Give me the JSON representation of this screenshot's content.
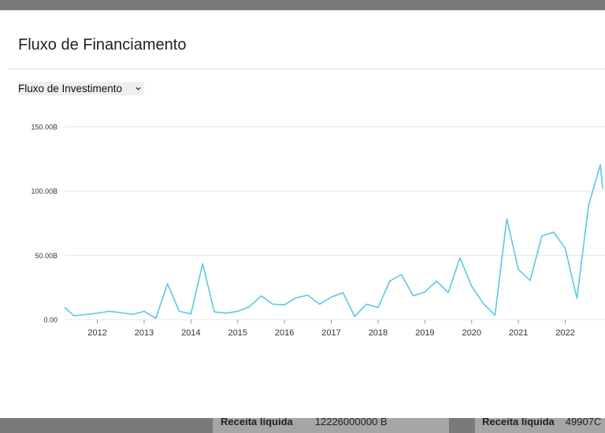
{
  "modal": {
    "title": "Fluxo de Financiamento",
    "select_value": "Fluxo de Investimento"
  },
  "colors": {
    "line": "#5bc8e6",
    "grid": "#e6e6e6",
    "overlay": "#7a7a7a"
  },
  "icons": {
    "select": "chevron-down-icon"
  },
  "chart_data": {
    "type": "line",
    "title": "",
    "xlabel": "",
    "ylabel": "",
    "x_ticks": [
      "2012",
      "2013",
      "2014",
      "2015",
      "2016",
      "2017",
      "2018",
      "2019",
      "2020",
      "2021",
      "2022"
    ],
    "y_ticks": [
      "0.00",
      "50.00B",
      "100.00B",
      "150.00B"
    ],
    "ylim": [
      0,
      150
    ],
    "unit": "B",
    "grid": "horizontal",
    "series": [
      {
        "name": "",
        "x": [
          2011.3,
          2011.5,
          2011.75,
          2012.0,
          2012.25,
          2012.5,
          2012.75,
          2013.0,
          2013.25,
          2013.5,
          2013.75,
          2014.0,
          2014.25,
          2014.5,
          2014.75,
          2015.0,
          2015.25,
          2015.5,
          2015.75,
          2016.0,
          2016.25,
          2016.5,
          2016.75,
          2017.0,
          2017.25,
          2017.5,
          2017.75,
          2018.0,
          2018.25,
          2018.5,
          2018.75,
          2019.0,
          2019.25,
          2019.5,
          2019.75,
          2020.0,
          2020.25,
          2020.5,
          2020.75,
          2021.0,
          2021.25,
          2021.5,
          2021.75,
          2022.0,
          2022.25,
          2022.5,
          2022.75,
          2022.8
        ],
        "values": [
          9.5,
          3,
          4,
          5,
          6.5,
          5.5,
          4,
          6.5,
          1,
          28,
          6.5,
          4.5,
          43.5,
          6,
          5,
          6.5,
          10,
          18.5,
          12,
          11.5,
          17,
          19,
          12,
          17.5,
          21,
          2.5,
          12,
          9.5,
          30,
          35,
          18.5,
          21.5,
          30,
          21,
          48,
          26,
          12.5,
          3.5,
          78.5,
          39,
          30.5,
          65,
          68,
          55.5,
          16.5,
          89,
          120.5,
          102
        ]
      }
    ]
  },
  "background": {
    "left_label": "Receita líquida",
    "left_value": "12226000000 B",
    "right_label": "Receita líquida",
    "right_value": "49907C"
  }
}
